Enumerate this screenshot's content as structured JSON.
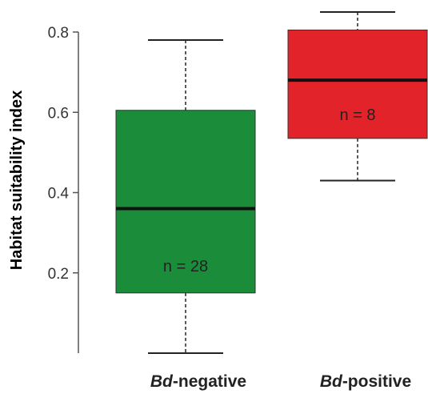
{
  "chart_data": {
    "type": "box",
    "ylabel": "Habitat suitability index",
    "ylim": [
      0,
      0.8
    ],
    "yticks": [
      "0.2",
      "0.4",
      "0.6",
      "0.8"
    ],
    "groups": [
      {
        "category_prefix": "Bd",
        "category_suffix": "-negative",
        "n_label": "n = 28",
        "min": 0.0,
        "q1": 0.15,
        "median": 0.36,
        "q3": 0.605,
        "max": 0.78,
        "color": "#1a8c3a"
      },
      {
        "category_prefix": "Bd",
        "category_suffix": "-positive",
        "n_label": "n = 8",
        "min": 0.43,
        "q1": 0.535,
        "median": 0.68,
        "q3": 0.805,
        "max": 0.85,
        "color": "#e3232a"
      }
    ]
  }
}
